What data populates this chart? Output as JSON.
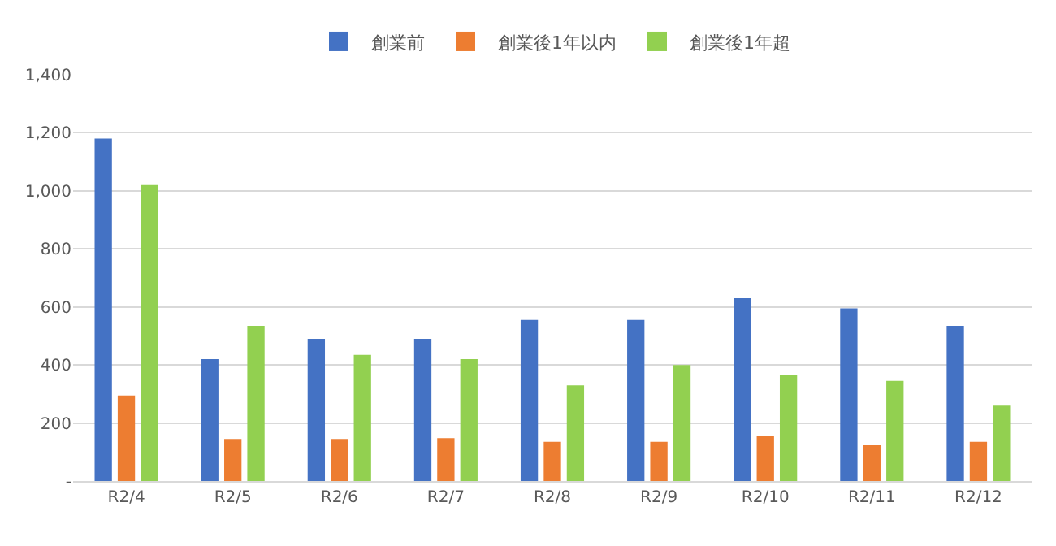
{
  "chart_data": {
    "type": "bar",
    "categories": [
      "R2/4",
      "R2/5",
      "R2/6",
      "R2/7",
      "R2/8",
      "R2/9",
      "R2/10",
      "R2/11",
      "R2/12"
    ],
    "series": [
      {
        "name": "創業前",
        "color": "#4472c4",
        "values": [
          1180,
          420,
          490,
          490,
          555,
          555,
          630,
          595,
          535
        ]
      },
      {
        "name": "創業後1年以内",
        "color": "#ed7d31",
        "values": [
          295,
          145,
          145,
          148,
          135,
          135,
          155,
          123,
          135
        ]
      },
      {
        "name": "創業後1年超",
        "color": "#92d050",
        "values": [
          1020,
          535,
          435,
          420,
          330,
          400,
          365,
          345,
          260
        ]
      }
    ],
    "ylim": [
      0,
      1400
    ],
    "yticks": [
      {
        "value": 0,
        "label": "-"
      },
      {
        "value": 200,
        "label": "200"
      },
      {
        "value": 400,
        "label": "400"
      },
      {
        "value": 600,
        "label": "600"
      },
      {
        "value": 800,
        "label": "800"
      },
      {
        "value": 1000,
        "label": "1,000"
      },
      {
        "value": 1200,
        "label": "1,200"
      },
      {
        "value": 1400,
        "label": "1,400"
      }
    ],
    "grid": "y",
    "legend": "top"
  }
}
